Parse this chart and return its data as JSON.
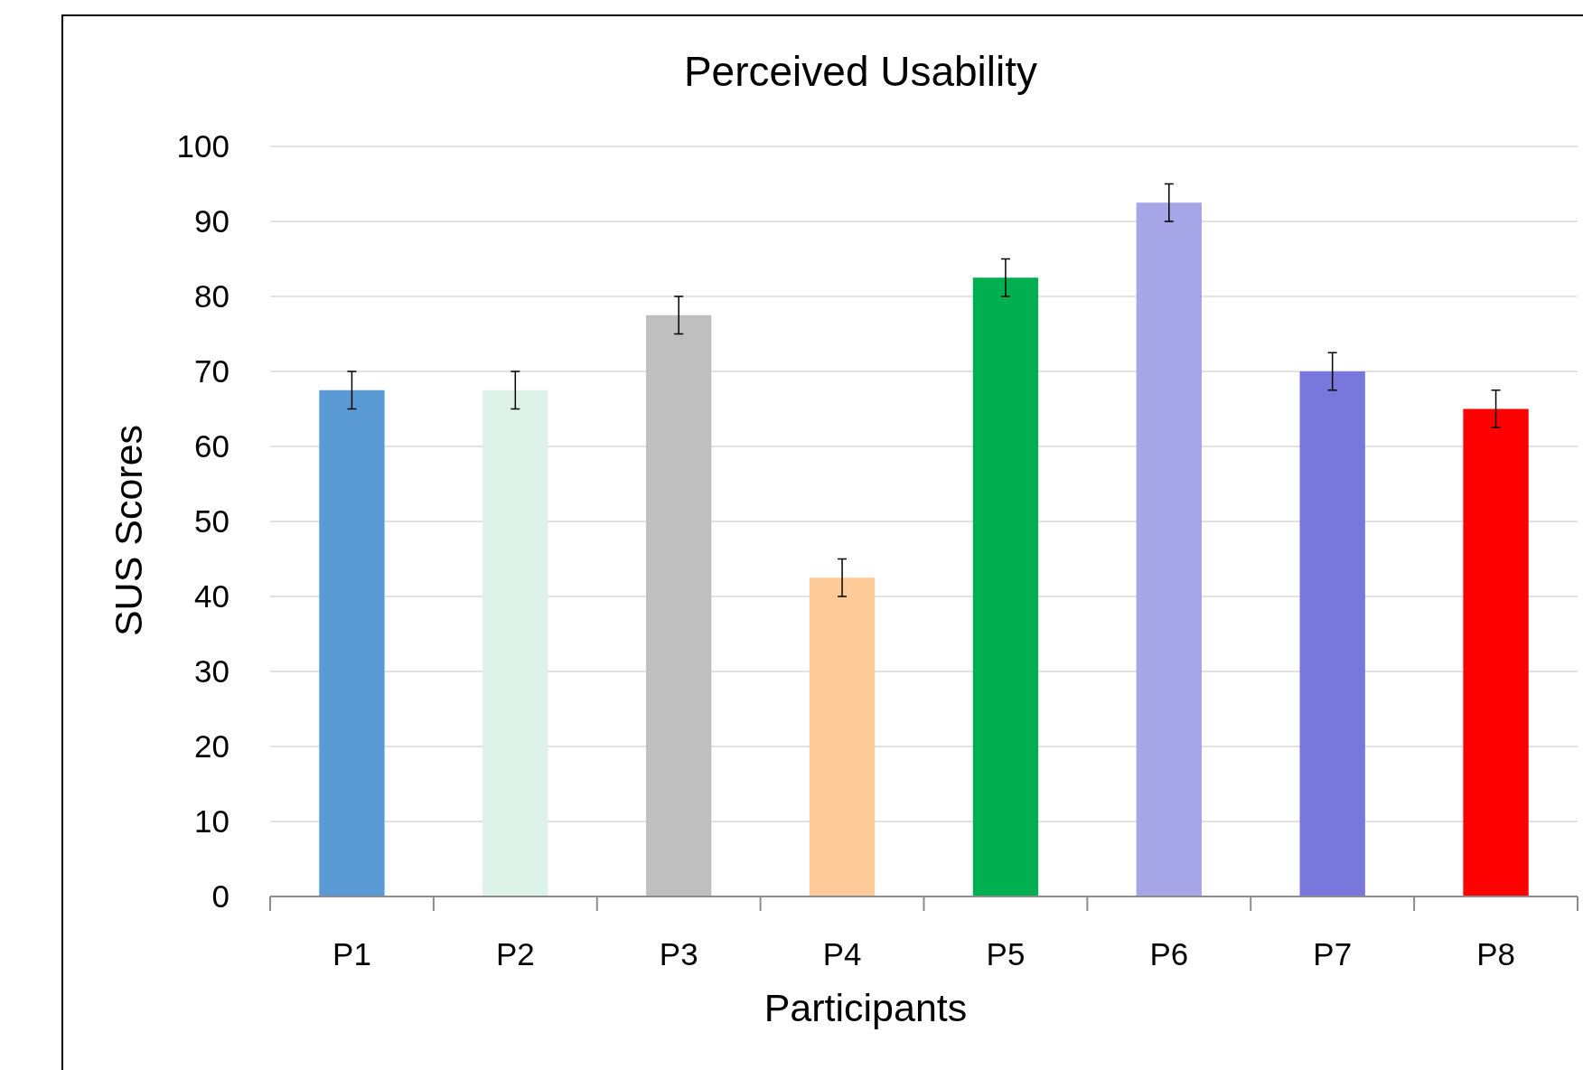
{
  "chart_data": {
    "type": "bar",
    "title": "Perceived Usability",
    "xlabel": "Participants",
    "ylabel": "SUS Scores",
    "categories": [
      "P1",
      "P2",
      "P3",
      "P4",
      "P5",
      "P6",
      "P7",
      "P8"
    ],
    "values": [
      67.5,
      67.5,
      77.5,
      42.5,
      82.5,
      92.5,
      70,
      65
    ],
    "colors": [
      "#5b9bd5",
      "#ddf2e8",
      "#bfbfbf",
      "#ffcc99",
      "#00b050",
      "#a5a5e8",
      "#7878dc",
      "#ff0000"
    ],
    "errors": [
      2.5,
      2.5,
      2.5,
      2.5,
      2.5,
      2.5,
      2.5,
      2.5
    ],
    "ylim": [
      0,
      100
    ],
    "yticks": [
      0,
      10,
      20,
      30,
      40,
      50,
      60,
      70,
      80,
      90,
      100
    ],
    "grid": "y"
  }
}
